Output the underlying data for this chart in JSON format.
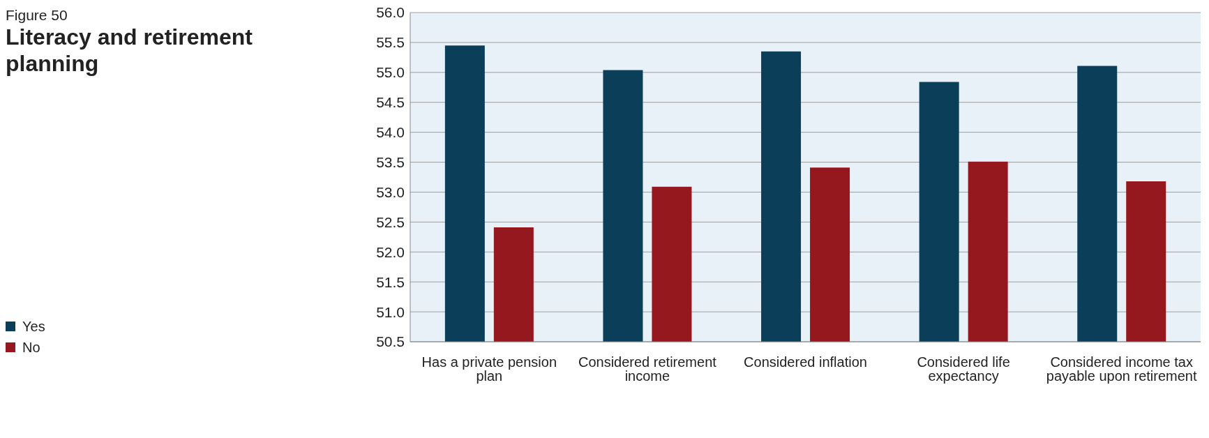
{
  "chart_data": {
    "type": "bar",
    "subtitle": "Figure 50",
    "title": "Literacy and retirement planning",
    "categories": [
      "Has a private pension plan",
      "Considered retirement income",
      "Considered inflation",
      "Considered life expectancy",
      "Considered income tax payable upon retirement"
    ],
    "series": [
      {
        "name": "Yes",
        "color": "#0b3f59",
        "values": [
          55.45,
          55.04,
          55.35,
          54.84,
          55.11
        ]
      },
      {
        "name": "No",
        "color": "#96181f",
        "values": [
          52.41,
          53.09,
          53.41,
          53.51,
          53.18
        ]
      }
    ],
    "ylim": [
      50.5,
      56.0
    ],
    "yticks": [
      {
        "value": 50.5,
        "label": "50.5"
      },
      {
        "value": 51,
        "label": "51.0"
      },
      {
        "value": 51.5,
        "label": "51.5"
      },
      {
        "value": 52,
        "label": "52.0"
      },
      {
        "value": 52.5,
        "label": "52.5"
      },
      {
        "value": 53,
        "label": "53.0"
      },
      {
        "value": 53.5,
        "label": "53.5"
      },
      {
        "value": 54,
        "label": "54.0"
      },
      {
        "value": 54.5,
        "label": "54.5"
      },
      {
        "value": 55,
        "label": "55.0"
      },
      {
        "value": 55.5,
        "label": "55.5"
      },
      {
        "value": 56,
        "label": "56.0"
      }
    ],
    "grid": "y",
    "legend": "left"
  }
}
